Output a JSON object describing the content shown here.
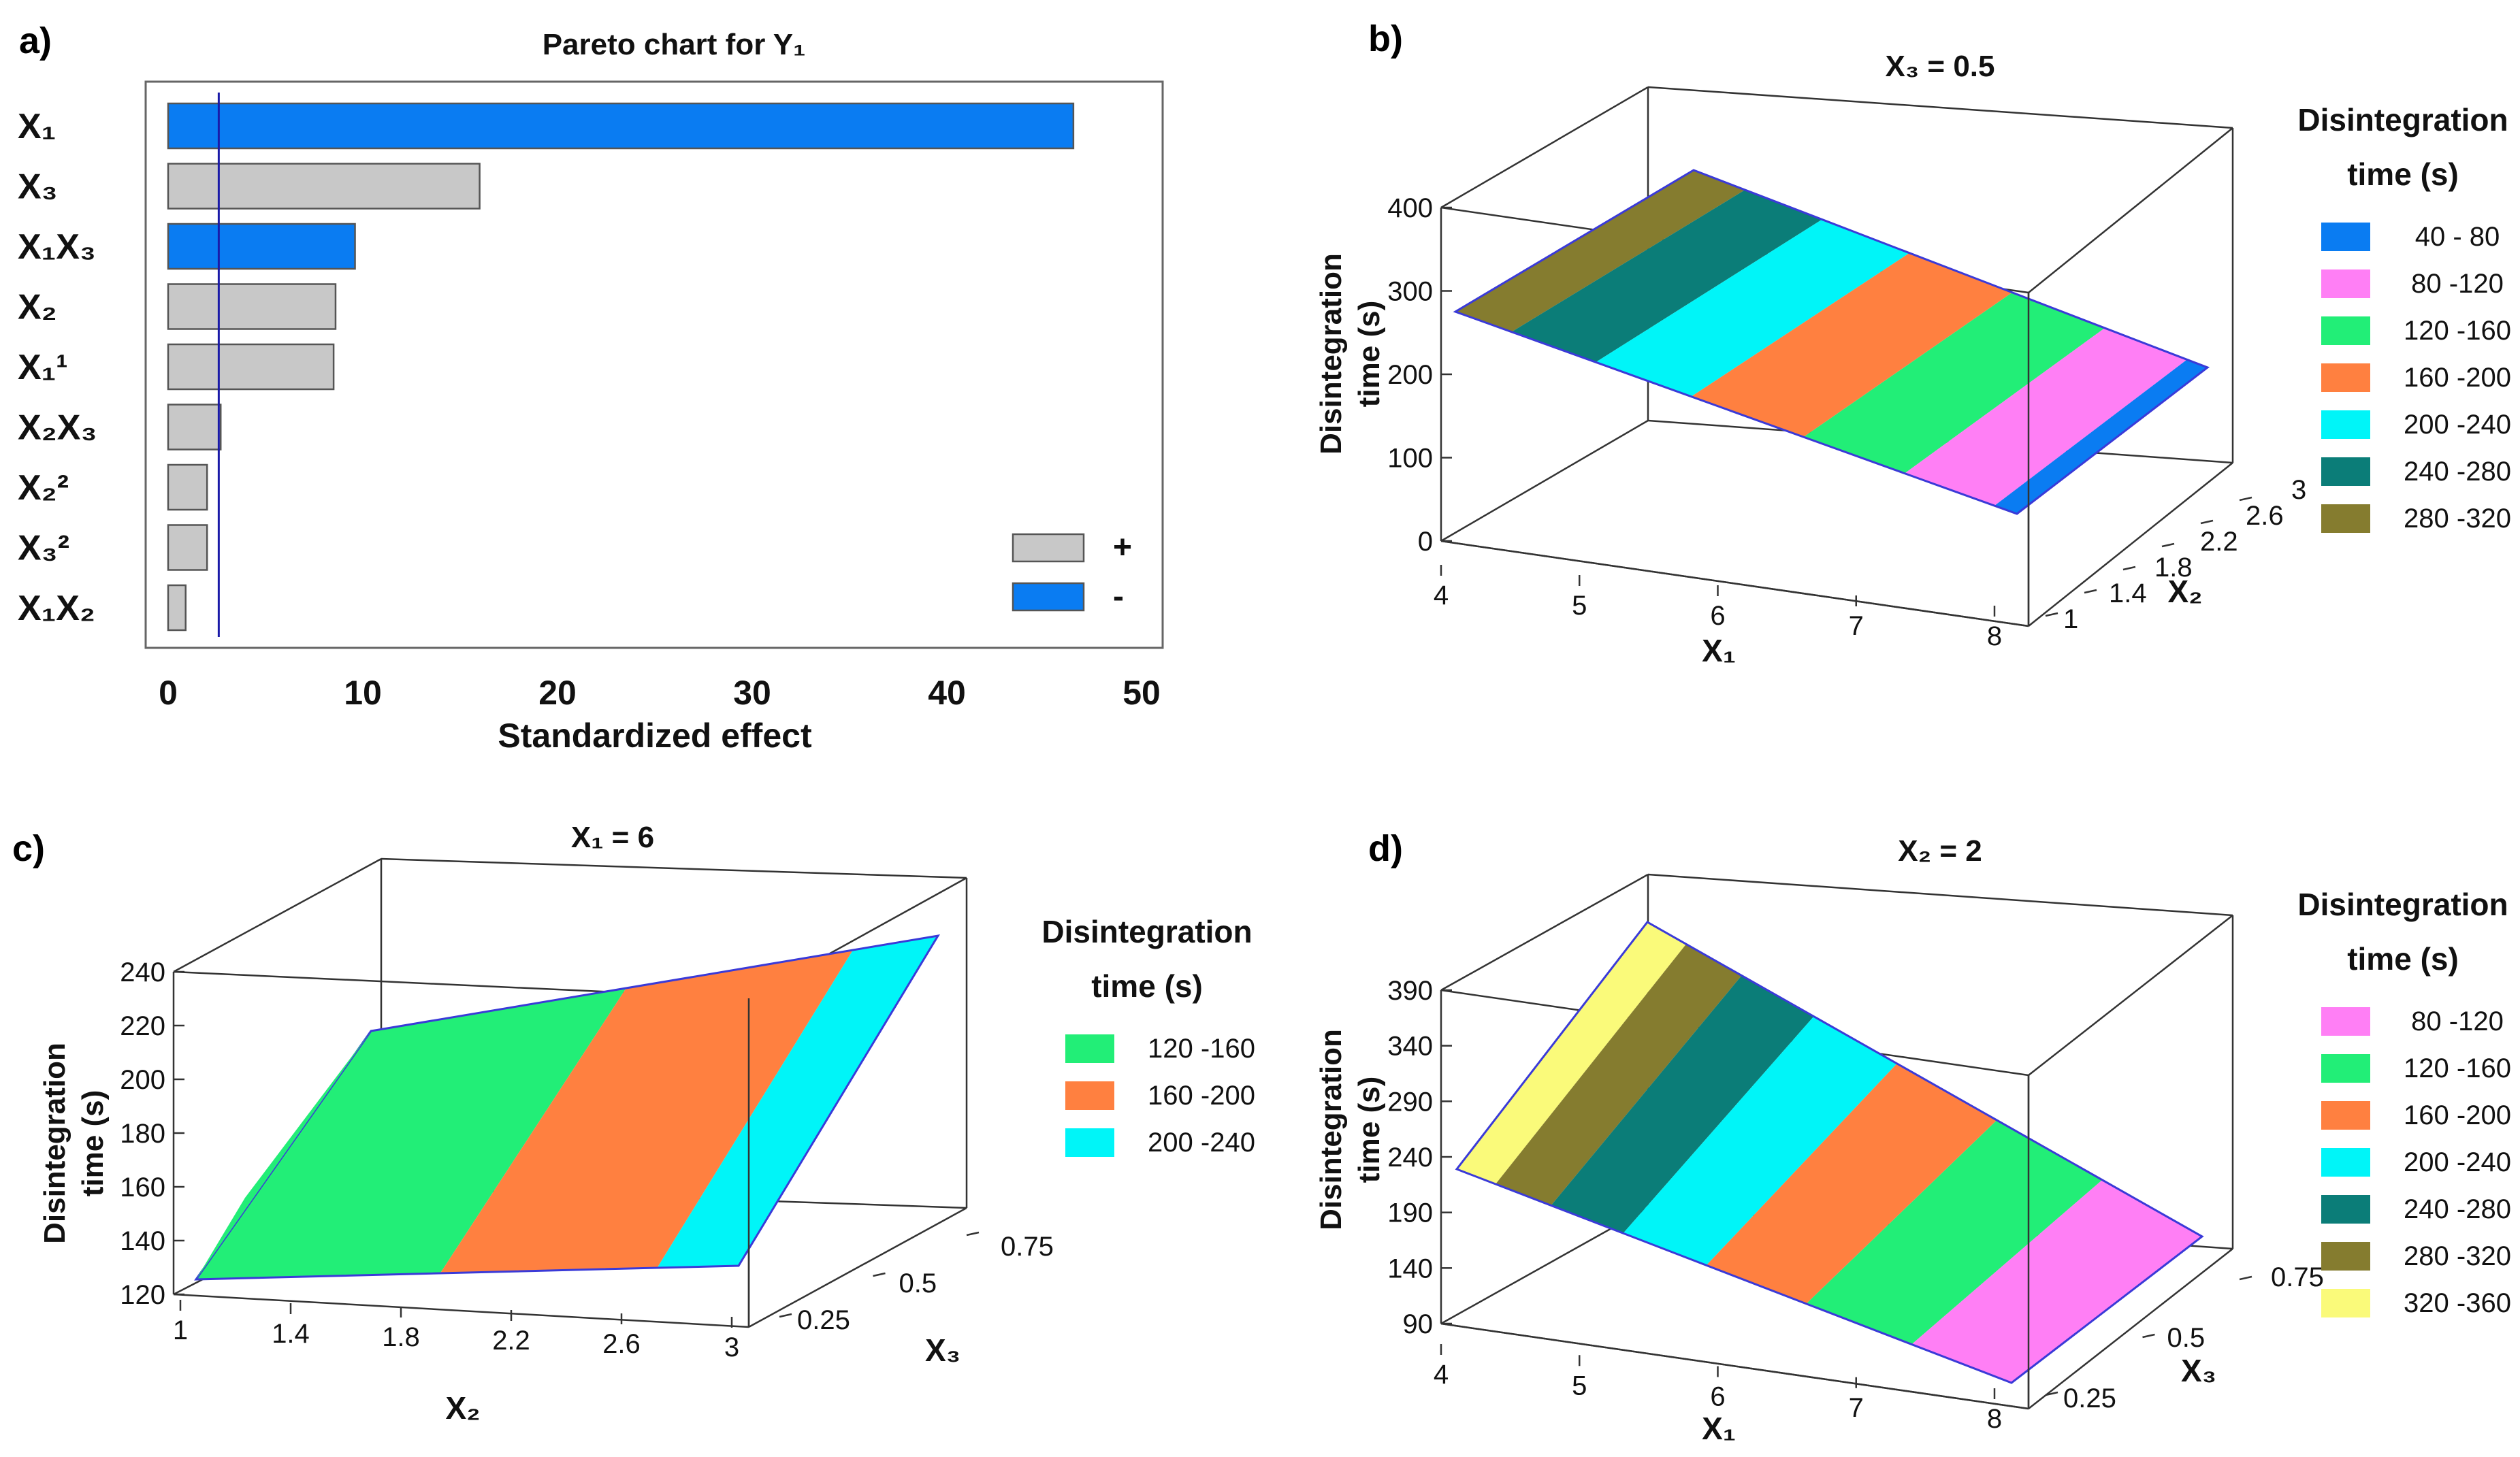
{
  "colors": {
    "blue": "#0a7cf2",
    "gray": "#c8c8c8",
    "magenta": "#ff7ff5",
    "green": "#22ee77",
    "orange": "#ff8040",
    "cyan": "#00f5f8",
    "teal": "#0b7d78",
    "olive": "#857c2f",
    "yellow": "#fafa7a"
  },
  "chart_data": [
    {
      "panel": "a)",
      "type": "bar",
      "orientation": "horizontal",
      "title": "Pareto chart for Y₁",
      "xlabel": "Standardized effect",
      "xlim": [
        0,
        50
      ],
      "xticks": [
        "0",
        "10",
        "20",
        "30",
        "40",
        "50"
      ],
      "categories": [
        "X₁",
        "X₃",
        "X₁X₃",
        "X₂",
        "X₁¹",
        "X₂X₃",
        "X₂²",
        "X₃²",
        "X₁X₂"
      ],
      "values": [
        46.5,
        16.0,
        9.6,
        8.6,
        8.5,
        2.7,
        2.0,
        2.0,
        0.9
      ],
      "signs": [
        "-",
        "+",
        "-",
        "+",
        "+",
        "+",
        "+",
        "+",
        "+"
      ],
      "reference_line": 2.6,
      "legend": [
        {
          "label": "+",
          "color": "gray"
        },
        {
          "label": "-",
          "color": "blue"
        }
      ]
    },
    {
      "panel": "b)",
      "type": "surface",
      "title": "X₃ = 0.5",
      "ylabel": "Disintegration time (s)",
      "xlabel": "X₁",
      "depth_label": "X₂",
      "zticks": [
        "0",
        "100",
        "200",
        "300",
        "400"
      ],
      "xticks": [
        "4",
        "5",
        "6",
        "7",
        "8"
      ],
      "depth_ticks": [
        "1",
        "1.4",
        "1.8",
        "2.2",
        "2.6",
        "3"
      ],
      "legend_title": [
        "Disintegration",
        "time (s)"
      ],
      "legend": [
        {
          "label": "40 -  80",
          "color": "blue"
        },
        {
          "label": "80 -120",
          "color": "magenta"
        },
        {
          "label": "120 -160",
          "color": "green"
        },
        {
          "label": "160 -200",
          "color": "orange"
        },
        {
          "label": "200 -240",
          "color": "cyan"
        },
        {
          "label": "240 -280",
          "color": "teal"
        },
        {
          "label": "280 -320",
          "color": "olive"
        }
      ]
    },
    {
      "panel": "c)",
      "type": "surface",
      "title": "X₁ = 6",
      "ylabel": "Disintegration time (s)",
      "xlabel": "X₂",
      "depth_label": "X₃",
      "zticks": [
        "120",
        "140",
        "160",
        "180",
        "200",
        "220",
        "240"
      ],
      "xticks": [
        "1",
        "1.4",
        "1.8",
        "2.2",
        "2.6",
        "3"
      ],
      "depth_ticks": [
        "0.25",
        "0.5",
        "0.75"
      ],
      "legend_title": [
        "Disintegration",
        "time (s)"
      ],
      "legend": [
        {
          "label": "120 -160",
          "color": "green"
        },
        {
          "label": "160 -200",
          "color": "orange"
        },
        {
          "label": "200 -240",
          "color": "cyan"
        }
      ]
    },
    {
      "panel": "d)",
      "type": "surface",
      "title": "X₂ = 2",
      "ylabel": "Disintegration time (s)",
      "xlabel": "X₁",
      "depth_label": "X₃",
      "zticks": [
        "90",
        "140",
        "190",
        "240",
        "290",
        "340",
        "390"
      ],
      "xticks": [
        "4",
        "5",
        "6",
        "7",
        "8"
      ],
      "depth_ticks": [
        "0.25",
        "0.5",
        "0.75"
      ],
      "legend_title": [
        "Disintegration",
        "time (s)"
      ],
      "legend": [
        {
          "label": "80 -120",
          "color": "magenta"
        },
        {
          "label": "120 -160",
          "color": "green"
        },
        {
          "label": "160 -200",
          "color": "orange"
        },
        {
          "label": "200 -240",
          "color": "cyan"
        },
        {
          "label": "240 -280",
          "color": "teal"
        },
        {
          "label": "280 -320",
          "color": "olive"
        },
        {
          "label": "320 -360",
          "color": "yellow"
        }
      ]
    }
  ]
}
